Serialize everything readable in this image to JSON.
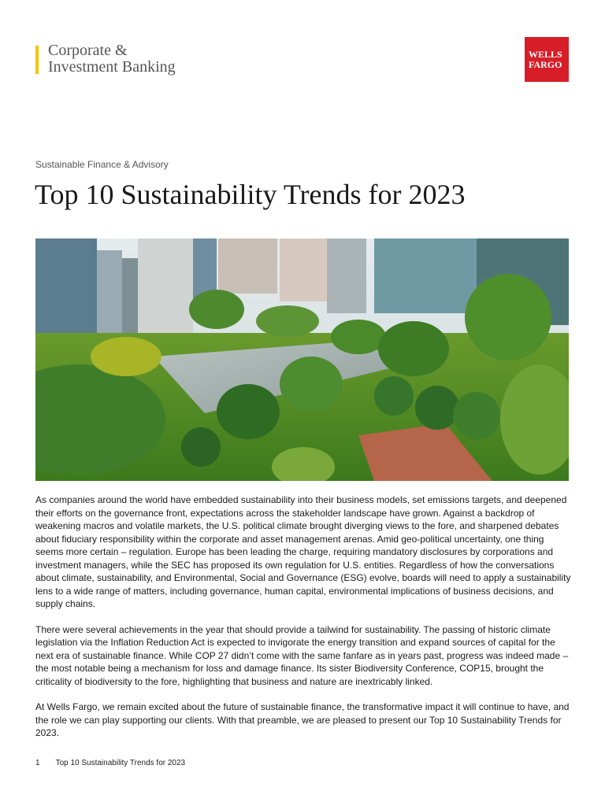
{
  "header": {
    "brand_line1": "Corporate &",
    "brand_line2": "Investment Banking",
    "logo_line1": "WELLS",
    "logo_line2": "FARGO"
  },
  "eyebrow": "Sustainable Finance & Advisory",
  "title": "Top 10 Sustainability Trends for 2023",
  "paragraphs": [
    "As companies around the world have embedded sustainability into their business models, set emissions targets, and deepened their efforts on the governance front, expectations across the stakeholder landscape have grown. Against a backdrop of weakening macros and volatile markets, the U.S. political climate brought diverging views to the fore, and sharpened debates about fiduciary responsibility within the corporate and asset management arenas. Amid geo-political uncertainty, one thing seems more certain – regulation.  Europe has been leading the charge, requiring mandatory disclosures by corporations and investment managers, while the SEC has proposed its own regulation for U.S. entities. Regardless of how the conversations about climate, sustainability, and Environmental, Social and Governance (ESG) evolve, boards will need to apply a sustainability lens to a wide range of matters, including governance, human capital, environmental implications of business decisions, and supply chains.",
    "There were several achievements in the year that should provide a tailwind for sustainability. The passing of historic climate legislation via the Inflation Reduction Act is expected to invigorate the energy transition and expand sources of capital for the next era of sustainable finance. While COP 27 didn’t come with the same fanfare as in years past, progress was indeed made – the most notable being a mechanism for loss and damage finance. Its sister Biodiversity Conference, COP15, brought the criticality of biodiversity to the fore, highlighting that business and nature are inextricably linked.",
    "At Wells Fargo, we remain excited about the future of sustainable finance, the transformative impact it will continue to have, and the role we can play supporting our clients. With that preamble, we are pleased to present our Top 10 Sustainability Trends for 2023."
  ],
  "footer": {
    "page": "1",
    "text": "Top 10 Sustainability Trends for 2023"
  }
}
